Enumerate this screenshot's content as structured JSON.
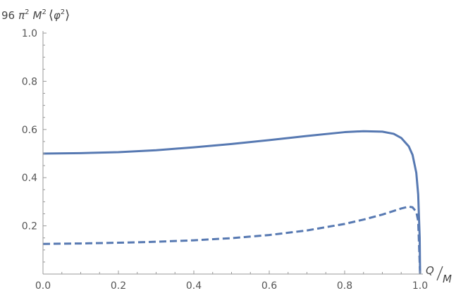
{
  "chart_data": {
    "type": "line",
    "title": "",
    "xlabel": {
      "num": "Q",
      "den": "M"
    },
    "ylabel": {
      "coef": "96",
      "pi": "π",
      "sup2": "2",
      "m": "M",
      "phi": "φ",
      "lang": "⟨",
      "rang": "⟩"
    },
    "xlim": [
      0.0,
      1.0
    ],
    "ylim": [
      0.0,
      1.0
    ],
    "x_ticks": [
      "0.0",
      "0.2",
      "0.4",
      "0.6",
      "0.8",
      "1.0"
    ],
    "y_ticks": [
      "0.2",
      "0.4",
      "0.6",
      "0.8",
      "1.0"
    ],
    "grid": false,
    "line_color": "#5779b2",
    "axis_color": "#999999",
    "series": [
      {
        "style": "solid",
        "x": [
          0.0,
          0.1,
          0.2,
          0.3,
          0.4,
          0.5,
          0.6,
          0.7,
          0.8,
          0.85,
          0.9,
          0.93,
          0.95,
          0.97,
          0.98,
          0.99,
          0.995,
          0.999,
          1.0
        ],
        "y": [
          0.5,
          0.502,
          0.506,
          0.514,
          0.526,
          0.54,
          0.556,
          0.573,
          0.589,
          0.593,
          0.591,
          0.582,
          0.565,
          0.53,
          0.495,
          0.42,
          0.33,
          0.15,
          0.0
        ]
      },
      {
        "style": "dashed",
        "x": [
          0.0,
          0.1,
          0.2,
          0.3,
          0.4,
          0.5,
          0.6,
          0.7,
          0.8,
          0.85,
          0.9,
          0.93,
          0.95,
          0.97,
          0.98,
          0.99,
          0.995,
          1.0
        ],
        "y": [
          0.125,
          0.127,
          0.13,
          0.134,
          0.14,
          0.149,
          0.162,
          0.181,
          0.208,
          0.226,
          0.247,
          0.262,
          0.272,
          0.28,
          0.277,
          0.258,
          0.22,
          0.0
        ]
      }
    ]
  }
}
